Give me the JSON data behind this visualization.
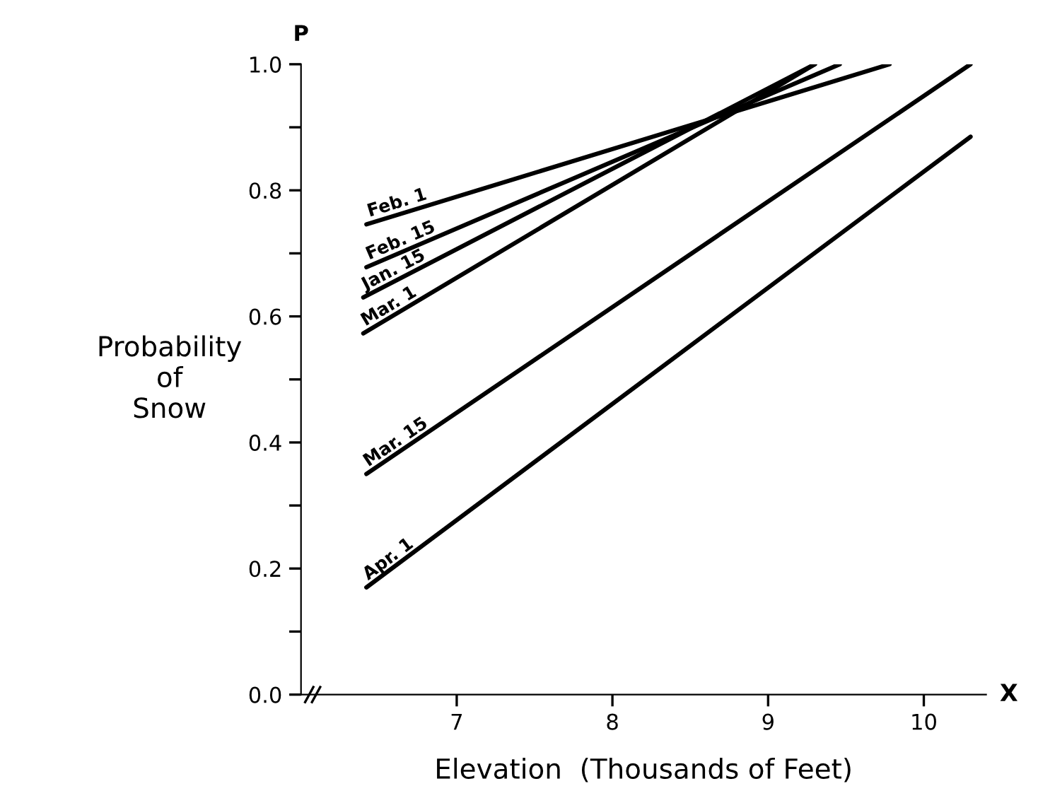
{
  "chart_data": {
    "type": "line",
    "xlabel": "Elevation  (Thousands of Feet)",
    "ylabel": "Probability\nof\nSnow",
    "annotations": [
      "P",
      "X"
    ],
    "xlim": [
      6,
      10.4
    ],
    "ylim": [
      0,
      1.0
    ],
    "xticks": [
      7,
      8,
      9,
      10
    ],
    "yticks": [
      {
        "value": 0,
        "label": "0.0"
      },
      {
        "value": 0.1,
        "label": null
      },
      0.2,
      {
        "value": 0.3,
        "label": null
      },
      0.4,
      {
        "value": 0.5,
        "label": null
      },
      0.6,
      {
        "value": 0.7,
        "label": null
      },
      0.8,
      {
        "value": 0.9,
        "label": null
      },
      {
        "value": 1,
        "label": "1.0"
      }
    ],
    "grid": false,
    "legend": false,
    "marker": "none",
    "line_style": "solid",
    "series": [
      {
        "name": "Feb. 1",
        "color": "#000000",
        "x": [
          6.42,
          9.78
        ],
        "values": [
          0.746,
          1.0
        ]
      },
      {
        "name": "Feb. 15",
        "color": "#000000",
        "x": [
          6.42,
          9.46
        ],
        "values": [
          0.678,
          1.0
        ]
      },
      {
        "name": "Jan. 15",
        "color": "#000000",
        "x": [
          6.4,
          9.3
        ],
        "values": [
          0.63,
          1.0
        ]
      },
      {
        "name": "Mar. 1",
        "color": "#000000",
        "x": [
          6.4,
          9.3
        ],
        "values": [
          0.573,
          1.0
        ]
      },
      {
        "name": "Mar. 15",
        "color": "#000000",
        "x": [
          6.42,
          10.3
        ],
        "values": [
          0.35,
          1.0
        ]
      },
      {
        "name": "Apr. 1",
        "color": "#000000",
        "x": [
          6.42,
          10.3
        ],
        "values": [
          0.17,
          0.885
        ]
      }
    ]
  }
}
